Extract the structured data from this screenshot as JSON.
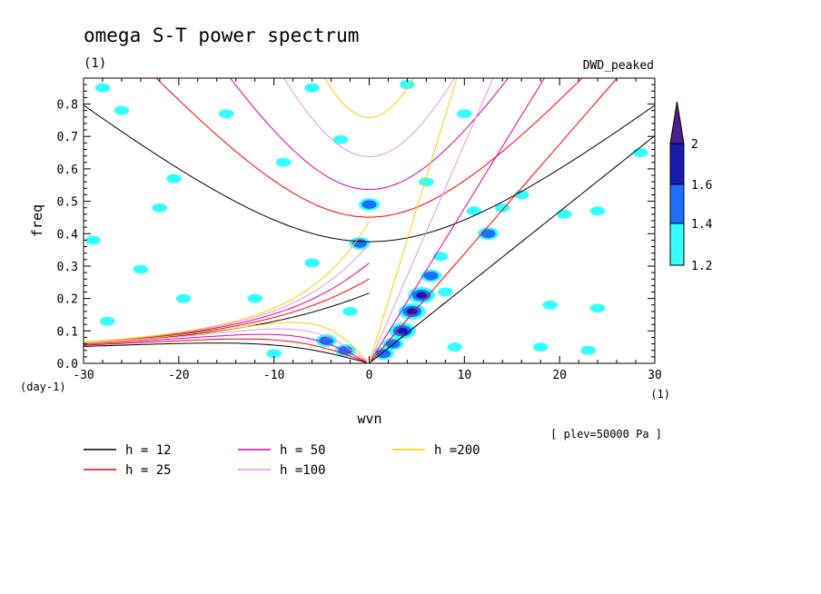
{
  "chart_data": {
    "type": "heatmap",
    "title": "omega S-T power spectrum",
    "subtitle_left": "(1)",
    "subtitle_right": "DWD_peaked",
    "xlabel": "wvn",
    "ylabel": "freq",
    "x_unit": "(1)",
    "y_unit": "(day-1)",
    "xlim": [
      -30,
      30
    ],
    "ylim": [
      0,
      0.88
    ],
    "x_ticks": [
      "-30",
      "-20",
      "-10",
      "0",
      "10",
      "20",
      "30"
    ],
    "x_tick_values": [
      -30,
      -20,
      -10,
      0,
      10,
      20,
      30
    ],
    "y_ticks": [
      "0.0",
      "0.1",
      "0.2",
      "0.3",
      "0.4",
      "0.5",
      "0.6",
      "0.7",
      "0.8"
    ],
    "y_tick_values": [
      0,
      0.1,
      0.2,
      0.3,
      0.4,
      0.5,
      0.6,
      0.7,
      0.8
    ],
    "annotation": "[ plev=50000 Pa ]",
    "colorbar": {
      "levels": [
        "1.2",
        "1.4",
        "1.6",
        "2"
      ],
      "colors": [
        "#33ffff",
        "#1e6fff",
        "#1a1aa8",
        "#4a2090"
      ]
    },
    "dispersion_curves": [
      {
        "label": "h = 12",
        "h": 12,
        "color": "#000000"
      },
      {
        "label": "h = 25",
        "h": 25,
        "color": "#ff0000"
      },
      {
        "label": "h = 50",
        "h": 50,
        "color": "#dd00aa"
      },
      {
        "label": "h =100",
        "h": 100,
        "color": "#dd99dd"
      },
      {
        "label": "h =200",
        "h": 200,
        "color": "#ffcc00"
      }
    ],
    "blobs": [
      {
        "x": 3.5,
        "y": 0.1,
        "level": 3
      },
      {
        "x": 4.5,
        "y": 0.16,
        "level": 3
      },
      {
        "x": 5.5,
        "y": 0.21,
        "level": 3
      },
      {
        "x": 2.5,
        "y": 0.06,
        "level": 2
      },
      {
        "x": 6.5,
        "y": 0.27,
        "level": 2
      },
      {
        "x": 12.5,
        "y": 0.4,
        "level": 2
      },
      {
        "x": -2.5,
        "y": 0.04,
        "level": 2
      },
      {
        "x": -4.5,
        "y": 0.07,
        "level": 2
      },
      {
        "x": 1.5,
        "y": 0.03,
        "level": 2
      },
      {
        "x": -1,
        "y": 0.37,
        "level": 2
      },
      {
        "x": 0,
        "y": 0.49,
        "level": 2
      },
      {
        "x": -10,
        "y": 0.03,
        "level": 1
      },
      {
        "x": 7.5,
        "y": 0.33,
        "level": 1
      },
      {
        "x": 8,
        "y": 0.22,
        "level": 1
      },
      {
        "x": 11,
        "y": 0.47,
        "level": 1
      },
      {
        "x": 16,
        "y": 0.52,
        "level": 1
      },
      {
        "x": -20.5,
        "y": 0.57,
        "level": 1
      },
      {
        "x": -22,
        "y": 0.48,
        "level": 1
      },
      {
        "x": -29,
        "y": 0.38,
        "level": 1
      },
      {
        "x": -15,
        "y": 0.77,
        "level": 1
      },
      {
        "x": -19.5,
        "y": 0.2,
        "level": 1
      },
      {
        "x": -6,
        "y": 0.31,
        "level": 1
      },
      {
        "x": 24,
        "y": 0.47,
        "level": 1
      },
      {
        "x": 6,
        "y": 0.56,
        "level": 1
      },
      {
        "x": 10,
        "y": 0.77,
        "level": 1
      },
      {
        "x": -9,
        "y": 0.62,
        "level": 1
      },
      {
        "x": 19,
        "y": 0.18,
        "level": 1
      },
      {
        "x": 24,
        "y": 0.17,
        "level": 1
      },
      {
        "x": 18,
        "y": 0.05,
        "level": 1
      },
      {
        "x": -3,
        "y": 0.69,
        "level": 1
      },
      {
        "x": -6,
        "y": 0.85,
        "level": 1
      },
      {
        "x": 4,
        "y": 0.86,
        "level": 1
      },
      {
        "x": 20.5,
        "y": 0.46,
        "level": 1
      },
      {
        "x": -26,
        "y": 0.78,
        "level": 1
      },
      {
        "x": -28,
        "y": 0.85,
        "level": 1
      },
      {
        "x": -24,
        "y": 0.29,
        "level": 1
      },
      {
        "x": -27.5,
        "y": 0.13,
        "level": 1
      },
      {
        "x": 14,
        "y": 0.48,
        "level": 1
      },
      {
        "x": 28.5,
        "y": 0.65,
        "level": 1
      },
      {
        "x": -12,
        "y": 0.2,
        "level": 1
      },
      {
        "x": 23,
        "y": 0.04,
        "level": 1
      },
      {
        "x": -2,
        "y": 0.16,
        "level": 1
      },
      {
        "x": 9,
        "y": 0.05,
        "level": 1
      }
    ]
  }
}
